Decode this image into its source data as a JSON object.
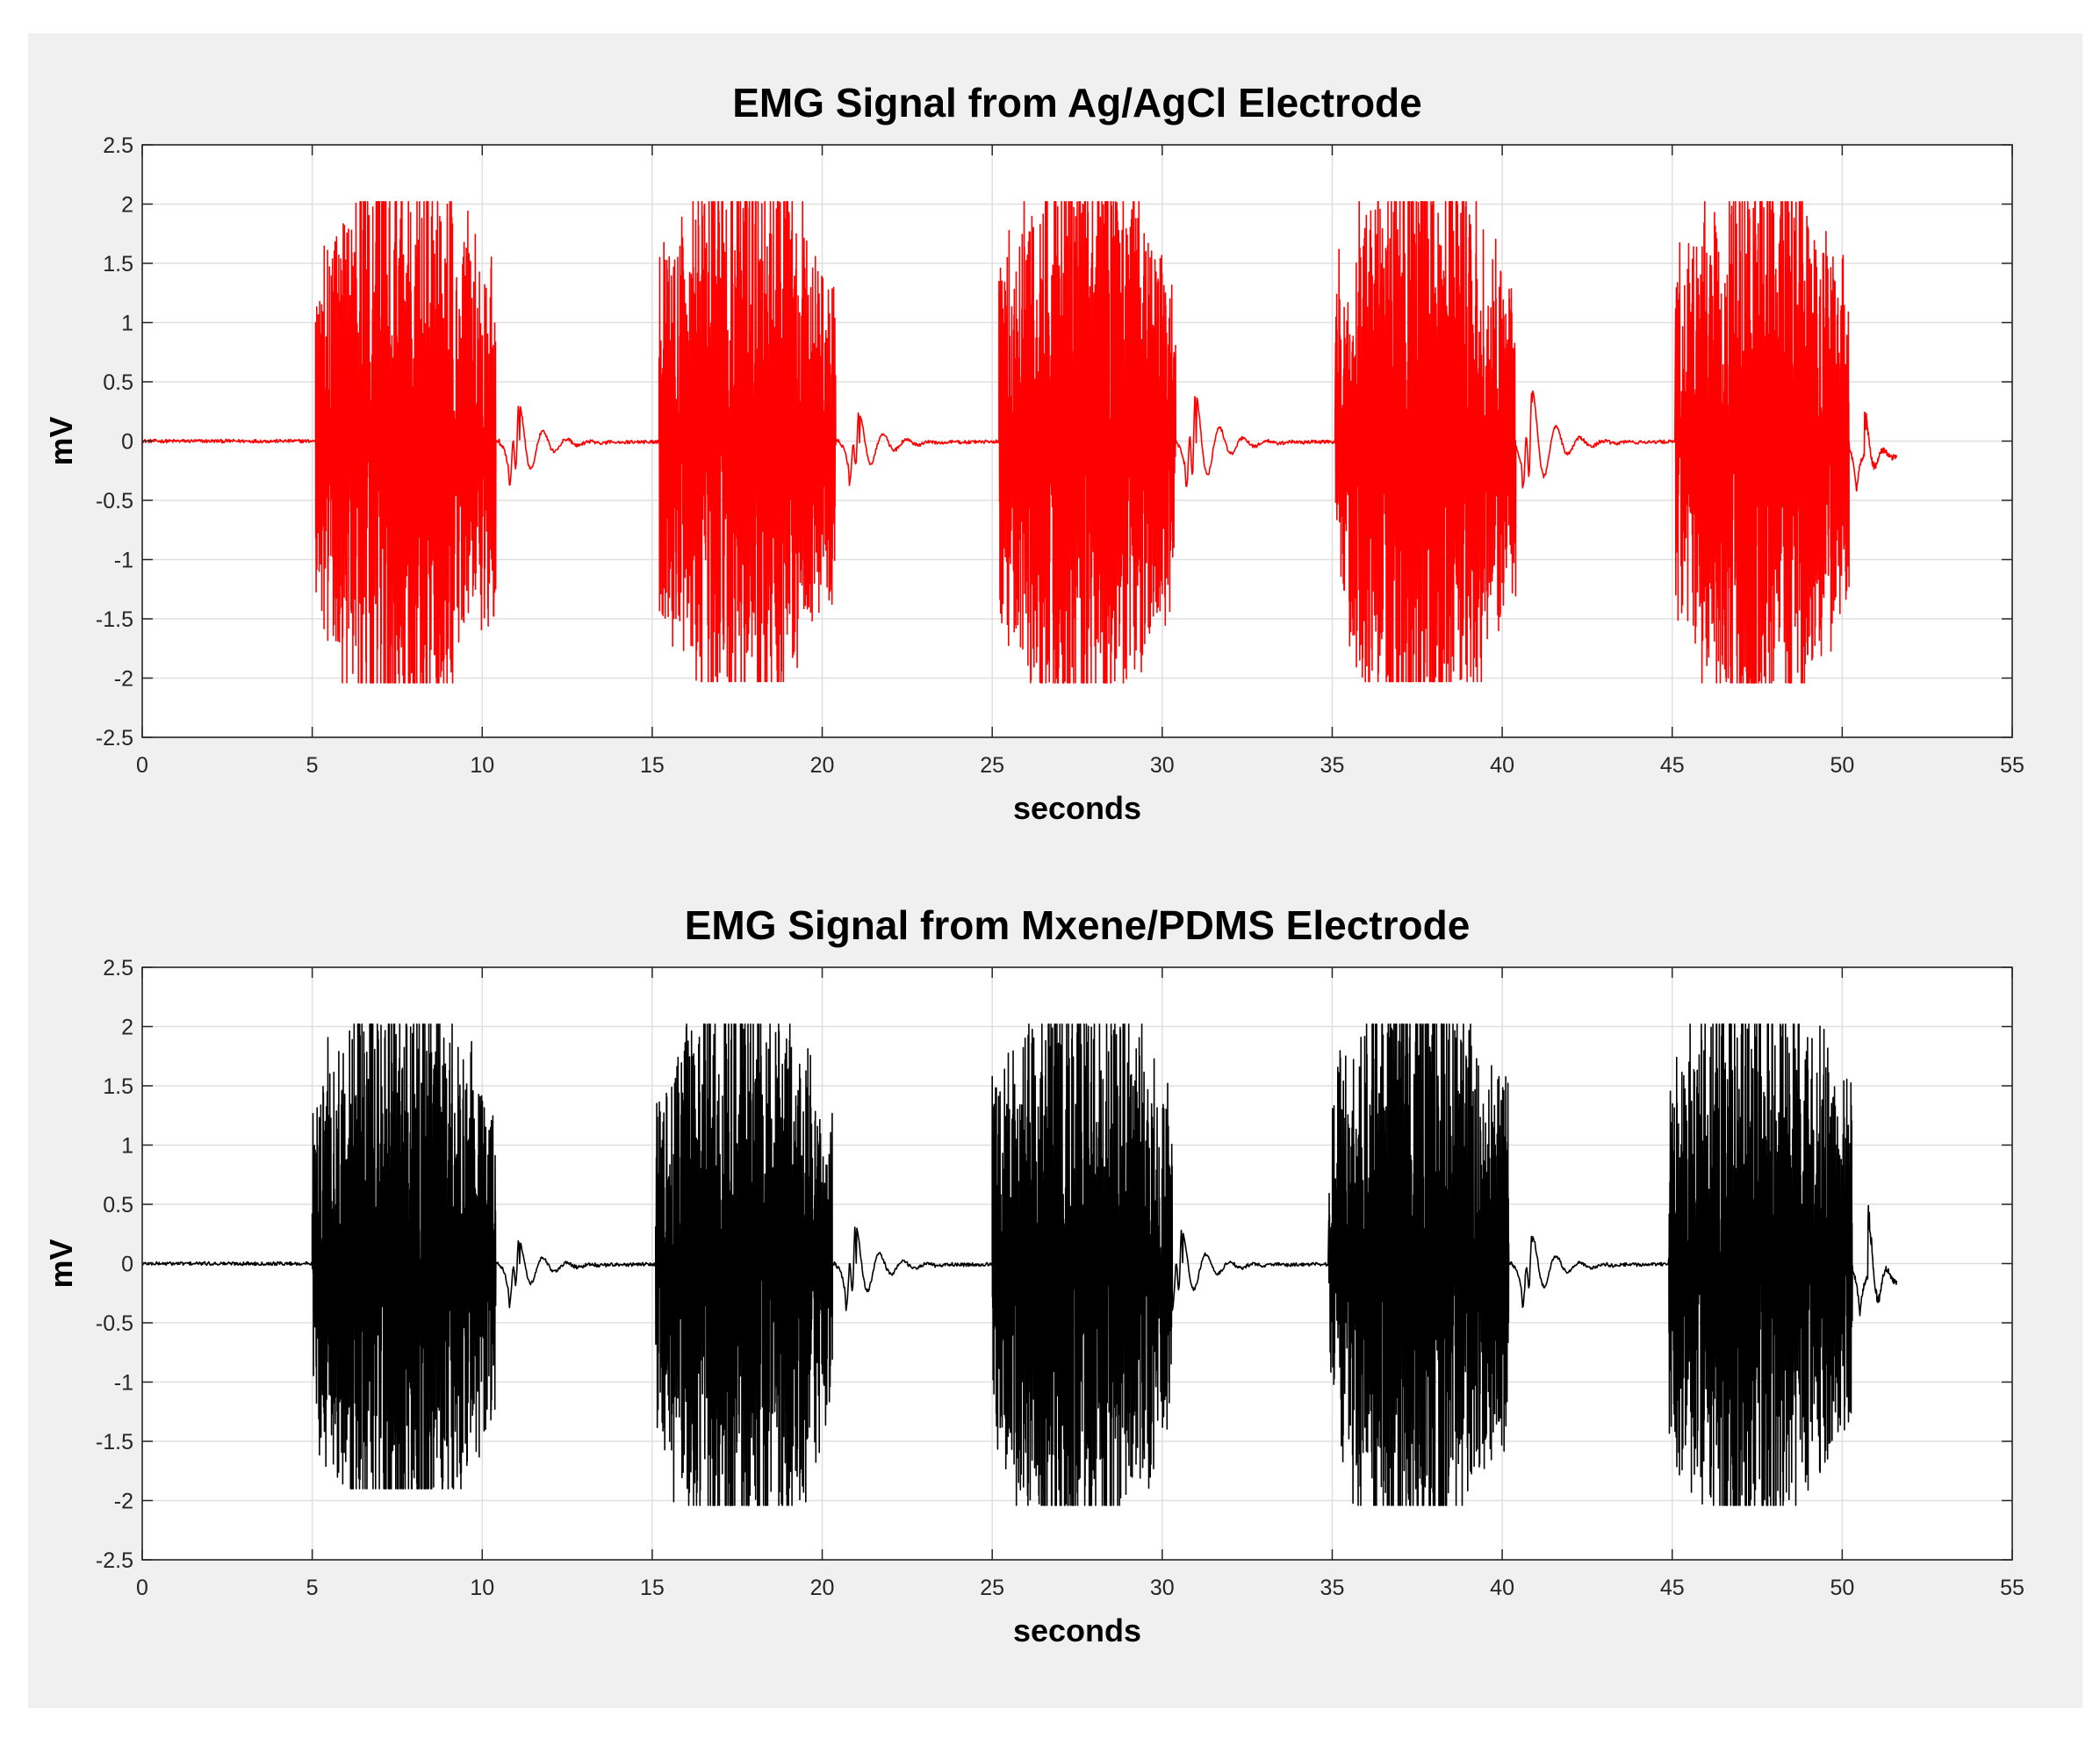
{
  "chart_data": [
    {
      "type": "line",
      "title": "EMG Signal from Ag/AgCl Electrode",
      "xlabel": "seconds",
      "ylabel": "mV",
      "xlim": [
        0,
        55
      ],
      "ylim": [
        -2.5,
        2.5
      ],
      "xticks": [
        0,
        5,
        10,
        15,
        20,
        25,
        30,
        35,
        40,
        45,
        50,
        55
      ],
      "yticks": [
        2.5,
        2,
        1.5,
        1,
        0.5,
        0,
        -0.5,
        -1,
        -1.5,
        -2,
        -2.5
      ],
      "grid": true,
      "series": [
        {
          "color": "#ff0000",
          "x_range": [
            0,
            51.6
          ],
          "baseline": 0,
          "amplitude_limits": [
            -2.05,
            2.02
          ],
          "bursts": [
            {
              "start": 5.1,
              "end": 10.4,
              "max": 2.02,
              "min": -2.04
            },
            {
              "start": 15.2,
              "end": 20.4,
              "max": 2.02,
              "min": -2.03
            },
            {
              "start": 25.2,
              "end": 30.4,
              "max": 2.02,
              "min": -2.04
            },
            {
              "start": 35.1,
              "end": 40.4,
              "max": 2.02,
              "min": -2.03
            },
            {
              "start": 45.1,
              "end": 50.2,
              "max": 2.02,
              "min": -2.04
            }
          ],
          "post_burst_peaks": [
            {
              "x": 11.1,
              "y": 0.38
            },
            {
              "x": 21.1,
              "y": 0.3
            },
            {
              "x": 31.0,
              "y": 0.48
            },
            {
              "x": 40.9,
              "y": 0.5
            },
            {
              "x": 50.7,
              "y": 0.25
            }
          ],
          "end_value": -0.12
        }
      ]
    },
    {
      "type": "line",
      "title": "EMG Signal from Mxene/PDMS Electrode",
      "xlabel": "seconds",
      "ylabel": "mV",
      "xlim": [
        0,
        55
      ],
      "ylim": [
        -2.5,
        2.5
      ],
      "xticks": [
        0,
        5,
        10,
        15,
        20,
        25,
        30,
        35,
        40,
        45,
        50,
        55
      ],
      "yticks": [
        2.5,
        2,
        1.5,
        1,
        0.5,
        0,
        -0.5,
        -1,
        -1.5,
        -2,
        -2.5
      ],
      "grid": true,
      "series": [
        {
          "color": "#000000",
          "x_range": [
            0,
            51.6
          ],
          "baseline": 0,
          "amplitude_limits": [
            -2.05,
            2.02
          ],
          "bursts": [
            {
              "start": 5.0,
              "end": 10.4,
              "max": 2.02,
              "min": -1.9
            },
            {
              "start": 15.1,
              "end": 20.3,
              "max": 2.02,
              "min": -2.04
            },
            {
              "start": 25.0,
              "end": 30.3,
              "max": 2.02,
              "min": -2.04
            },
            {
              "start": 34.9,
              "end": 40.2,
              "max": 2.02,
              "min": -2.04
            },
            {
              "start": 44.9,
              "end": 50.3,
              "max": 2.02,
              "min": -2.04
            }
          ],
          "post_burst_peaks": [
            {
              "x": 11.1,
              "y": 0.25
            },
            {
              "x": 21.0,
              "y": 0.38
            },
            {
              "x": 30.6,
              "y": 0.35
            },
            {
              "x": 40.9,
              "y": 0.3
            },
            {
              "x": 50.8,
              "y": 0.45
            }
          ],
          "end_value": -0.12
        }
      ]
    }
  ]
}
